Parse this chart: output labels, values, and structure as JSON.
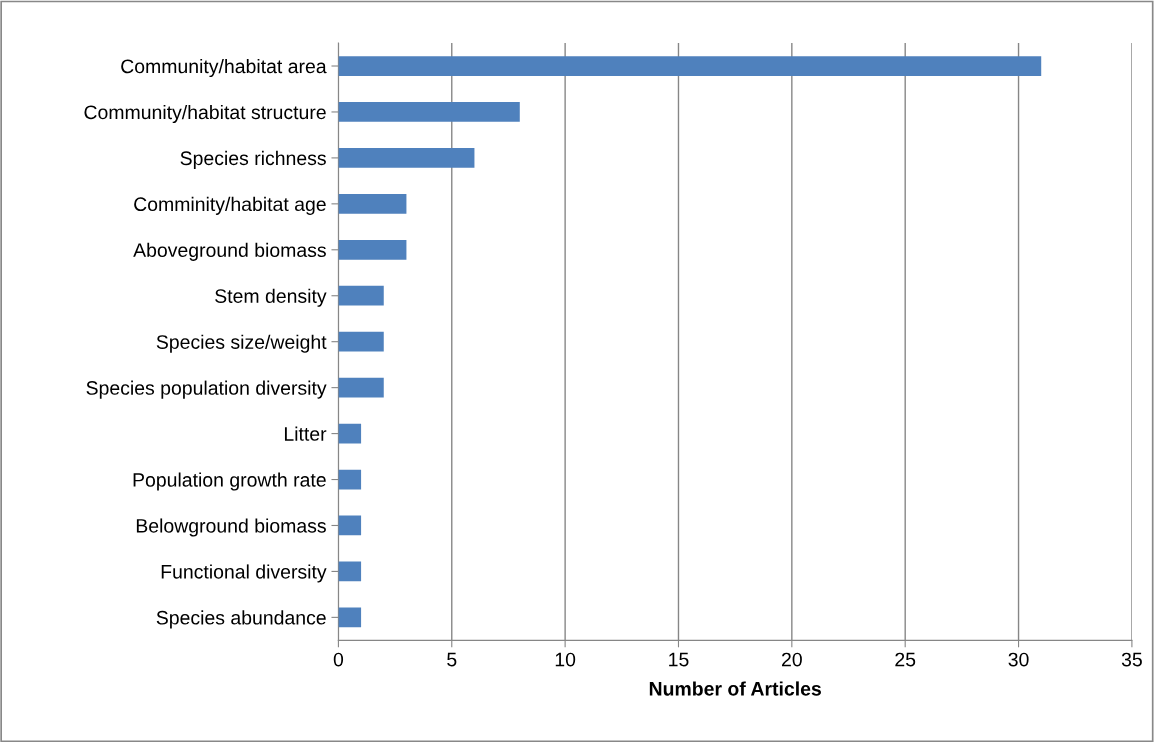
{
  "chart_data": {
    "type": "bar",
    "orientation": "horizontal",
    "xlabel": "Number of Articles",
    "categories": [
      "Community/habitat area",
      "Community/habitat structure",
      "Species richness",
      "Comminity/habitat age",
      "Aboveground biomass",
      "Stem density",
      "Species size/weight",
      "Species population diversity",
      "Litter",
      "Population growth rate",
      "Belowground biomass",
      "Functional diversity",
      "Species abundance"
    ],
    "values": [
      31,
      8,
      6,
      3,
      3,
      2,
      2,
      2,
      1,
      1,
      1,
      1,
      1
    ],
    "color": "#4f81bd",
    "xlim": [
      0,
      35
    ],
    "xticks": [
      0,
      5,
      10,
      15,
      20,
      25,
      30,
      35
    ],
    "grid": "x"
  }
}
